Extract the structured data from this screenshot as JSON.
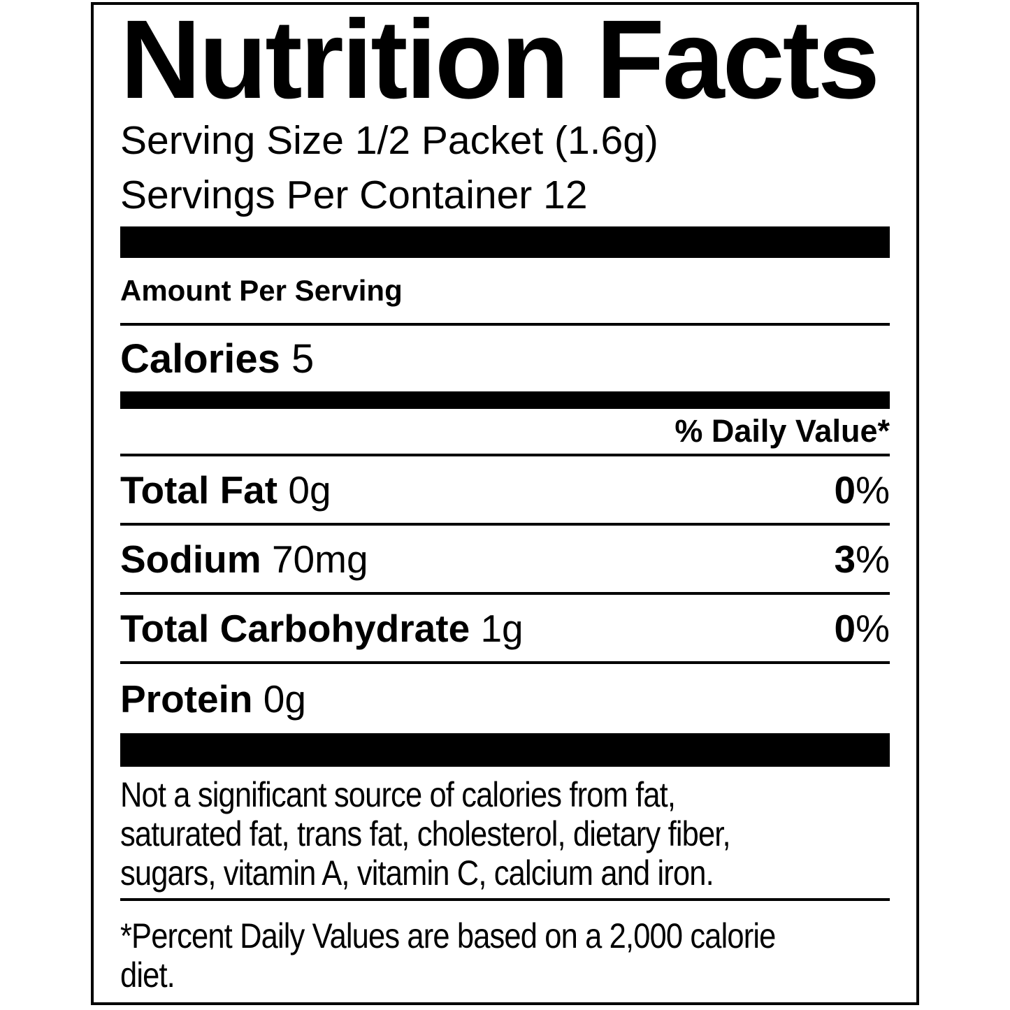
{
  "label": {
    "title": "Nutrition Facts",
    "serving_size": "Serving Size 1/2 Packet (1.6g)",
    "servings_per_container": "Servings Per Container 12",
    "amount_per_serving": "Amount Per Serving",
    "calories": {
      "label": "Calories",
      "value": "5"
    },
    "daily_value_header": "% Daily Value*",
    "nutrients": [
      {
        "name": "Total Fat",
        "amount": "0g",
        "daily_value_number": "0",
        "percent_sign": "%"
      },
      {
        "name": "Sodium",
        "amount": "70mg",
        "daily_value_number": "3",
        "percent_sign": "%"
      },
      {
        "name": "Total Carbohydrate",
        "amount": "1g",
        "daily_value_number": "0",
        "percent_sign": "%"
      },
      {
        "name": "Protein",
        "amount": "0g"
      }
    ],
    "disclaimer_lines": [
      "Not a significant source of calories from fat,",
      "saturated fat, trans fat, cholesterol, dietary fiber,",
      "sugars, vitamin A, vitamin C, calcium and iron."
    ],
    "footnote_lines": [
      "*Percent Daily Values are based on a 2,000 calorie",
      "diet."
    ],
    "colors": {
      "text": "#000000",
      "background": "#ffffff",
      "divider": "#000000"
    }
  }
}
